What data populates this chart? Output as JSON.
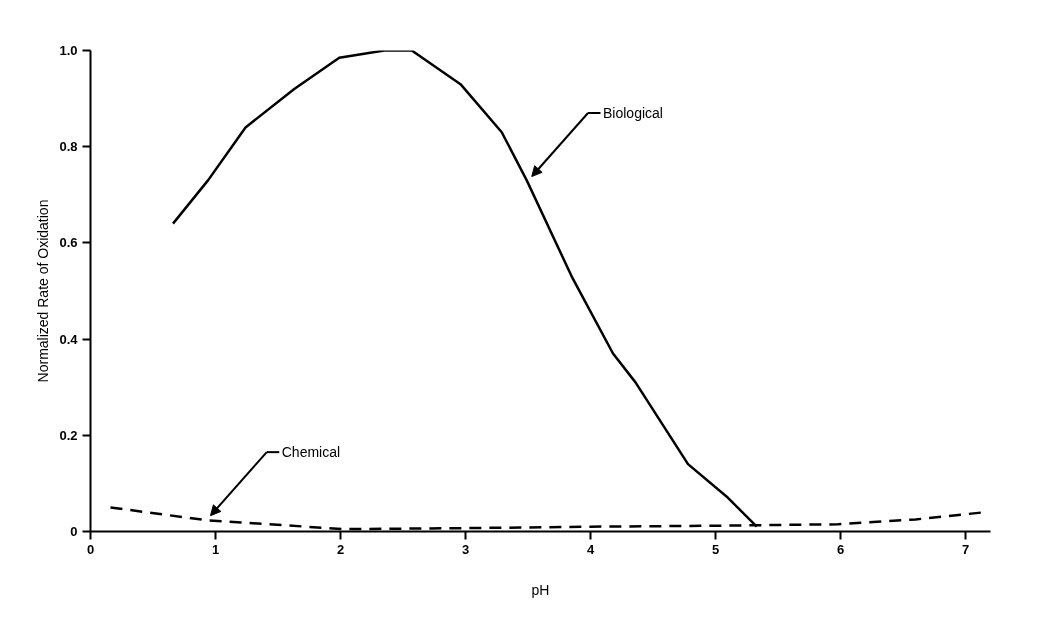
{
  "chart_data": {
    "type": "line",
    "xlabel": "pH",
    "ylabel": "Normalized Rate of Oxidation",
    "xlim": [
      0,
      7.2
    ],
    "xticks": [
      0,
      1,
      2,
      3,
      4,
      5,
      6,
      7
    ],
    "ylim": [
      0,
      1.0
    ],
    "yticks": [
      0,
      {
        "value": 0.2,
        "label": "0.2"
      },
      {
        "value": 0.4,
        "label": "0.4"
      },
      {
        "value": 0.6,
        "label": "0.6"
      },
      {
        "value": 0.8,
        "label": "0.8"
      },
      {
        "value": 1.0,
        "label": "1.0"
      }
    ],
    "series": [
      {
        "color": "#000000",
        "line_style": "solid",
        "x": [
          0.66,
          0.94,
          1.24,
          1.63,
          1.99,
          2.35,
          2.57,
          2.96,
          3.29,
          3.49,
          3.85,
          4.18,
          4.36,
          4.78,
          5.1,
          5.33
        ],
        "values": [
          0.64,
          0.73,
          0.84,
          0.92,
          0.985,
          1.0,
          1.0,
          0.93,
          0.83,
          0.73,
          0.53,
          0.37,
          0.31,
          0.14,
          0.07,
          0.01
        ]
      },
      {
        "color": "#000000",
        "line_style": "dashed",
        "x": [
          0.16,
          0.94,
          2.03,
          3.0,
          4.0,
          5.0,
          5.98,
          6.6,
          7.15
        ],
        "values": [
          0.05,
          0.023,
          0.005,
          0.007,
          0.01,
          0.012,
          0.015,
          0.025,
          0.04
        ]
      }
    ],
    "annotations": [
      {
        "text": "Biological",
        "x": 3.5,
        "y": 0.73
      },
      {
        "text": "Chemical",
        "x": 0.93,
        "y": 0.025
      }
    ]
  }
}
